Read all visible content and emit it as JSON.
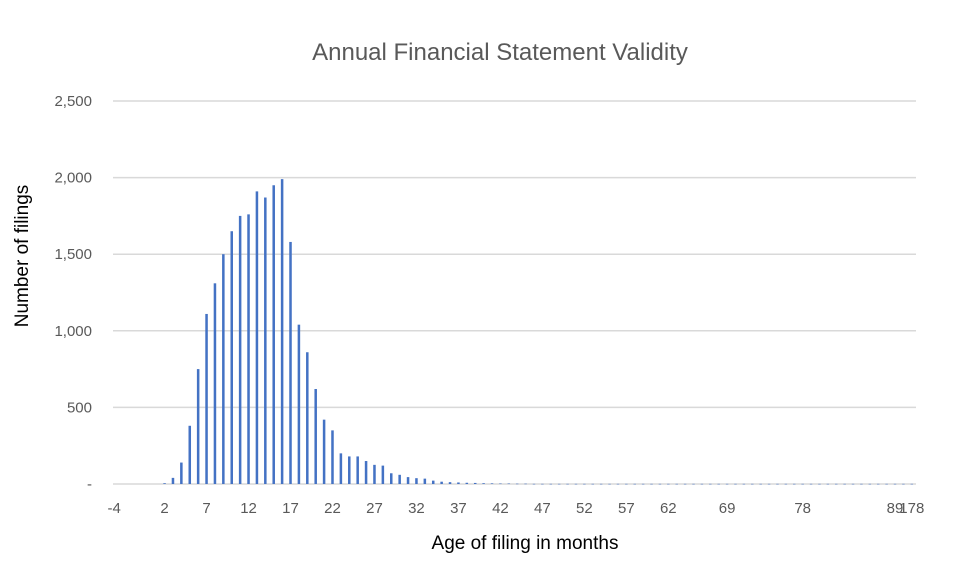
{
  "chart_data": {
    "type": "bar",
    "title": "Annual Financial Statement Validity",
    "xlabel": "Age of filing in months",
    "ylabel": "Number of filings",
    "ylim": [
      0,
      2500
    ],
    "y_ticks": [
      "-",
      "500",
      "1,000",
      "1,500",
      "2,000",
      "2,500"
    ],
    "x_tick_labels": [
      "-4",
      "2",
      "7",
      "12",
      "17",
      "22",
      "27",
      "32",
      "37",
      "42",
      "47",
      "52",
      "57",
      "62",
      "69",
      "78",
      "89",
      "178"
    ],
    "grid": true,
    "bar_color": "#4472C4",
    "grid_color": "#d9d9d9",
    "categories": [
      "-4",
      "-3",
      "-2",
      "-1",
      "0",
      "1",
      "2",
      "3",
      "4",
      "5",
      "6",
      "7",
      "8",
      "9",
      "10",
      "11",
      "12",
      "13",
      "14",
      "15",
      "16",
      "17",
      "18",
      "19",
      "20",
      "21",
      "22",
      "23",
      "24",
      "25",
      "26",
      "27",
      "28",
      "29",
      "30",
      "31",
      "32",
      "33",
      "34",
      "35",
      "36",
      "37",
      "38",
      "39",
      "40",
      "41",
      "42",
      "43",
      "44",
      "45",
      "46",
      "47",
      "48",
      "49",
      "50",
      "51",
      "52",
      "53",
      "54",
      "55",
      "56",
      "57",
      "58",
      "59",
      "60",
      "61",
      "62",
      "63",
      "64",
      "65",
      "66",
      "67",
      "68",
      "69",
      "70",
      "71",
      "72",
      "73",
      "74",
      "75",
      "76",
      "77",
      "78",
      "79",
      "80",
      "81",
      "82",
      "83",
      "84",
      "85",
      "86",
      "87",
      "88",
      "89",
      "90",
      "178"
    ],
    "values": [
      0,
      0,
      0,
      0,
      0,
      0,
      5,
      40,
      140,
      380,
      750,
      1110,
      1310,
      1500,
      1650,
      1750,
      1760,
      1910,
      1870,
      1950,
      1990,
      1580,
      1040,
      860,
      620,
      420,
      350,
      200,
      180,
      180,
      150,
      125,
      120,
      70,
      60,
      45,
      38,
      35,
      22,
      15,
      12,
      10,
      8,
      7,
      5,
      4,
      3,
      3,
      2,
      2,
      1,
      1,
      1,
      1,
      1,
      1,
      1,
      1,
      1,
      1,
      1,
      1,
      1,
      1,
      1,
      1,
      1,
      1,
      1,
      1,
      1,
      1,
      1,
      1,
      1,
      1,
      1,
      1,
      1,
      1,
      1,
      1,
      1,
      1,
      1,
      1,
      1,
      1,
      1,
      1,
      1,
      1,
      1,
      1,
      1,
      1
    ]
  }
}
